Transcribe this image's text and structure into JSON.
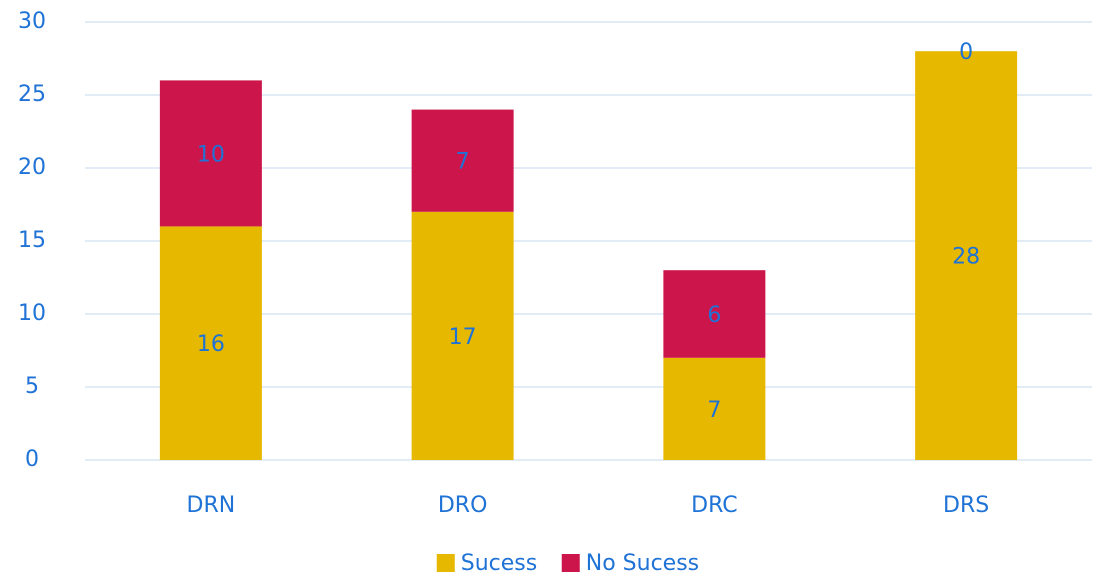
{
  "chart_data": {
    "type": "bar",
    "stacked": true,
    "categories": [
      "DRN",
      "DRO",
      "DRC",
      "DRS"
    ],
    "series": [
      {
        "name": "Sucess",
        "color": "#e6b800",
        "values": [
          16,
          17,
          7,
          28
        ]
      },
      {
        "name": "No Sucess",
        "color": "#cc164b",
        "values": [
          10,
          7,
          6,
          0
        ]
      }
    ],
    "ylim": [
      0,
      30
    ],
    "yticks": [
      0,
      5,
      10,
      15,
      20,
      25,
      30
    ],
    "grid": true,
    "legend": "bottom"
  }
}
